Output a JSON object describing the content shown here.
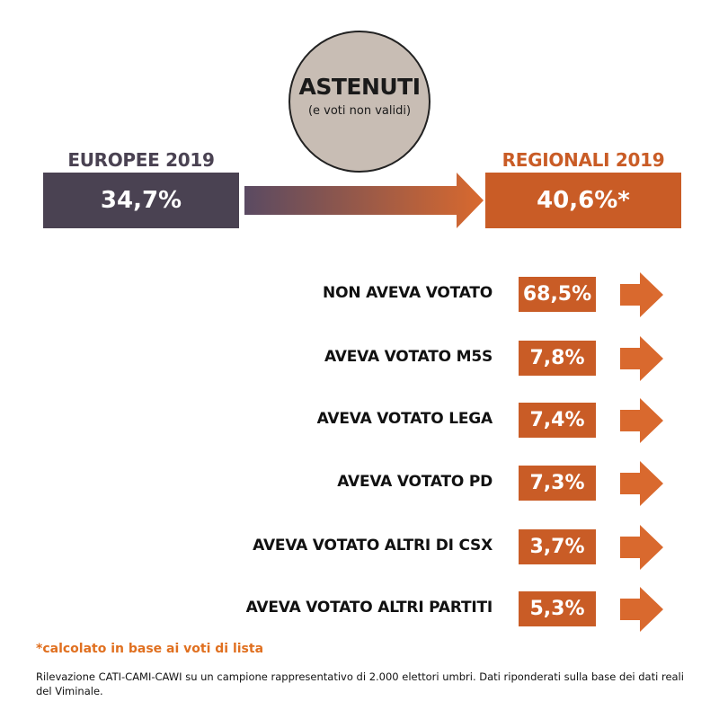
{
  "header": {
    "circle_title": "ASTENUTI",
    "circle_subtitle": "(e voti non validi)"
  },
  "europee": {
    "label": "EUROPEE 2019",
    "value": "34,7%",
    "color": "#4a4252",
    "label_color": "#4a4252"
  },
  "regionali": {
    "label": "REGIONALI 2019",
    "value": "40,6%*",
    "color": "#c95c26",
    "label_color": "#c95c26"
  },
  "rows": [
    {
      "label": "NON AVEVA VOTATO",
      "value": "68,5%"
    },
    {
      "label": "AVEVA VOTATO M5S",
      "value": "7,8%"
    },
    {
      "label": "AVEVA VOTATO LEGA",
      "value": "7,4%"
    },
    {
      "label": "AVEVA VOTATO PD",
      "value": "7,3%"
    },
    {
      "label": "AVEVA VOTATO ALTRI DI CSX",
      "value": "3,7%"
    },
    {
      "label": "AVEVA VOTATO ALTRI PARTITI",
      "value": "5,3%"
    }
  ],
  "note": "*calcolato in base ai voti di lista",
  "footer": "Rilevazione CATI-CAMI-CAWI su un campione rappresentativo di 2.000 elettori umbri. Dati riponderati sulla base dei dati reali del Viminale.",
  "colors": {
    "accent": "#c95c26",
    "arrow": "#d9692e",
    "dark": "#4a4252",
    "circle": "#c8bdb4",
    "note": "#e07020"
  }
}
